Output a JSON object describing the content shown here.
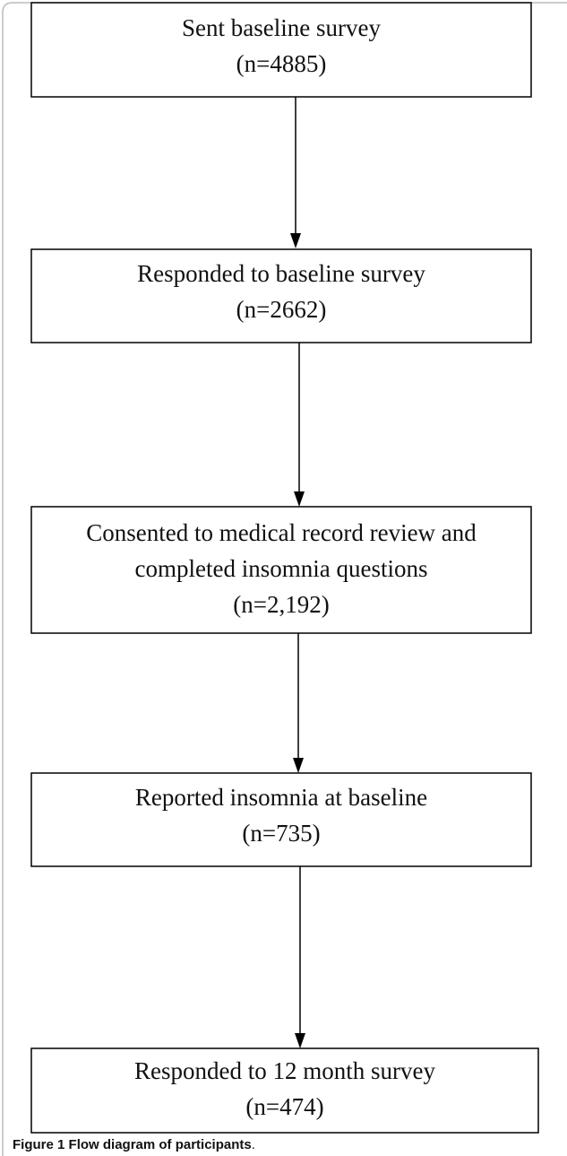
{
  "nodes": [
    {
      "lines": [
        "Sent baseline survey",
        "(n=4885)"
      ]
    },
    {
      "lines": [
        "Responded to baseline survey",
        "(n=2662)"
      ]
    },
    {
      "lines": [
        "Consented to medical record review and",
        "completed insomnia questions",
        "(n=2,192)"
      ]
    },
    {
      "lines": [
        "Reported insomnia at baseline",
        "(n=735)"
      ]
    },
    {
      "lines": [
        "Responded to 12 month survey",
        "(n=474)"
      ]
    }
  ],
  "caption": {
    "label": "Figure 1",
    "text": "Flow diagram of participants",
    "end": "."
  }
}
